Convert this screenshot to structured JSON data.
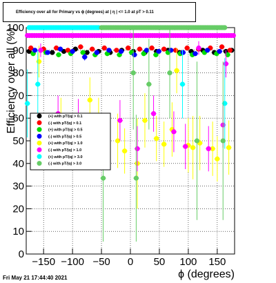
{
  "title": "Efficiency over all for Primary vs ϕ (degrees) at | η | <= 1.0 at pT > 0.11",
  "timestamp": "Fri May 21 17:44:40 2021",
  "chart_data": {
    "type": "scatter",
    "title": "Efficiency over all for Primary vs ϕ (degrees) at | η | <= 1.0 at pT > 0.11",
    "xlabel": "ϕ (degrees)",
    "ylabel": "Efficiency over all (%)",
    "xlim": [
      -180,
      180
    ],
    "ylim": [
      0,
      100
    ],
    "xticks": [
      -150,
      -100,
      -50,
      0,
      50,
      100,
      150
    ],
    "xtick_labels": [
      "−150",
      "−100",
      "−50",
      "0",
      "50",
      "100",
      "150"
    ],
    "yticks": [
      0,
      10,
      20,
      30,
      40,
      50,
      60,
      70,
      80,
      90,
      100
    ],
    "ytick_labels": [
      "0",
      "10",
      "20",
      "30",
      "40",
      "50",
      "60",
      "70",
      "80",
      "90",
      "100"
    ],
    "grid": true,
    "legend_position": "middle-left",
    "series": [
      {
        "name": "(+) with pT/|q| > 0.1",
        "color": "#000000",
        "x": [
          -175,
          -155,
          -135,
          -115,
          -95,
          -75,
          -55,
          -35,
          -15,
          5,
          25,
          45,
          65,
          85,
          105,
          125,
          145,
          165,
          175
        ],
        "y": [
          89.5,
          90,
          89,
          89.5,
          90.5,
          89,
          89.5,
          89,
          90,
          89.5,
          89,
          89.5,
          90,
          89,
          89.5,
          90,
          89,
          89.5,
          90
        ],
        "yerr": [
          1,
          1,
          1,
          1,
          1,
          1,
          1,
          1,
          1,
          1,
          1,
          1,
          1,
          1,
          1,
          1,
          1,
          1,
          1
        ]
      },
      {
        "name": "(-) with pT/|q| > 0.1",
        "color": "#ff0000",
        "x": [
          -172,
          -150,
          -128,
          -108,
          -86,
          -66,
          -45,
          -24,
          -4,
          16,
          37,
          58,
          78,
          98,
          118,
          138,
          158,
          172
        ],
        "y": [
          91,
          90.5,
          91,
          90,
          91.5,
          90.5,
          91,
          90,
          91,
          90.5,
          91,
          90.5,
          90,
          91,
          90.5,
          91,
          91.5,
          90
        ],
        "yerr": [
          1,
          1,
          1,
          1,
          1,
          1,
          1,
          1,
          1,
          1,
          1,
          1,
          1,
          1,
          1,
          1,
          1,
          1
        ]
      },
      {
        "name": "(+) with pT/|q| > 0.5",
        "color": "#00dd00",
        "x": [
          -168,
          -146,
          -124,
          -103,
          -82,
          -61,
          -40,
          -19,
          2,
          23,
          44,
          65,
          86,
          107,
          128,
          149,
          168
        ],
        "y": [
          88.5,
          89,
          88,
          88.5,
          89,
          88,
          88.5,
          88,
          89,
          88.5,
          88,
          89,
          88.5,
          88,
          89,
          88.5,
          88
        ],
        "yerr": [
          1,
          1,
          1,
          1,
          1,
          1,
          1,
          1,
          1,
          1,
          1,
          1,
          1,
          1,
          1,
          1,
          1
        ]
      },
      {
        "name": "(-) with pT/|q| > 0.5",
        "color": "#0000ff",
        "x": [
          -165,
          -143,
          -121,
          -100,
          -79,
          -58,
          -37,
          -16,
          7,
          28,
          49,
          70,
          91,
          112,
          133,
          154
        ],
        "y": [
          90,
          89,
          90.5,
          89.5,
          87,
          89,
          90,
          89.5,
          88,
          90,
          89.5,
          90,
          89,
          88.5,
          90,
          89.5
        ],
        "yerr": [
          1,
          1,
          1,
          1,
          1.5,
          1,
          1,
          1,
          1,
          1,
          1,
          1,
          1,
          1,
          1,
          1
        ]
      },
      {
        "name": "(+) with pT/|q| > 1.0",
        "color": "#ffff00",
        "x": [
          -158,
          -120,
          -70,
          -55,
          -22,
          -10,
          12,
          25,
          45,
          58,
          72,
          80,
          100,
          108,
          120,
          142,
          150,
          170
        ],
        "y": [
          85,
          61,
          68,
          60,
          50,
          45.5,
          40,
          59,
          51,
          48.5,
          55,
          81,
          48,
          47,
          49,
          46.5,
          42,
          47
        ],
        "yerr": [
          7,
          8,
          10,
          9,
          12,
          10,
          20,
          12,
          10,
          10,
          12,
          10,
          12,
          14,
          12,
          12,
          10,
          12
        ]
      },
      {
        "name": "(-) with pT/|q| > 1.0",
        "color": "#ff00ff",
        "x": [
          -155,
          -125,
          -90,
          -18,
          12,
          40,
          75,
          95,
          118,
          135,
          160,
          165
        ],
        "y": [
          90,
          62,
          60.5,
          59,
          46.5,
          62,
          54,
          47.5,
          91,
          46.5,
          57,
          84
        ],
        "yerr": [
          3,
          8,
          8,
          9,
          10,
          8,
          9,
          10,
          3,
          10,
          10,
          6
        ],
        "dense_top": {
          "y": 96.5,
          "x_start": -178,
          "x_end": 178,
          "step": 4
        }
      },
      {
        "name": "(+) with pT/|q| > 3.0",
        "color": "#00ffff",
        "x": [
          -178,
          -160,
          90,
          163
        ],
        "y": [
          66.5,
          75,
          75,
          66.5
        ],
        "yerr": [
          15,
          15,
          15,
          20
        ],
        "dense_top": {
          "y": 100,
          "x_start": -175,
          "x_end": -55,
          "step": 3
        }
      },
      {
        "name": "(-) with pT/|q| > 3.0",
        "color": "#66cc66",
        "x": [
          -47,
          5,
          10,
          32,
          68,
          115,
          160
        ],
        "y": [
          33.5,
          80,
          33.5,
          75,
          80,
          50,
          50
        ],
        "yerr": [
          28,
          25,
          28,
          20,
          20,
          35,
          35
        ],
        "dense_top": {
          "y": 100,
          "x_start": -50,
          "x_end": 165,
          "step": 3
        }
      }
    ]
  }
}
